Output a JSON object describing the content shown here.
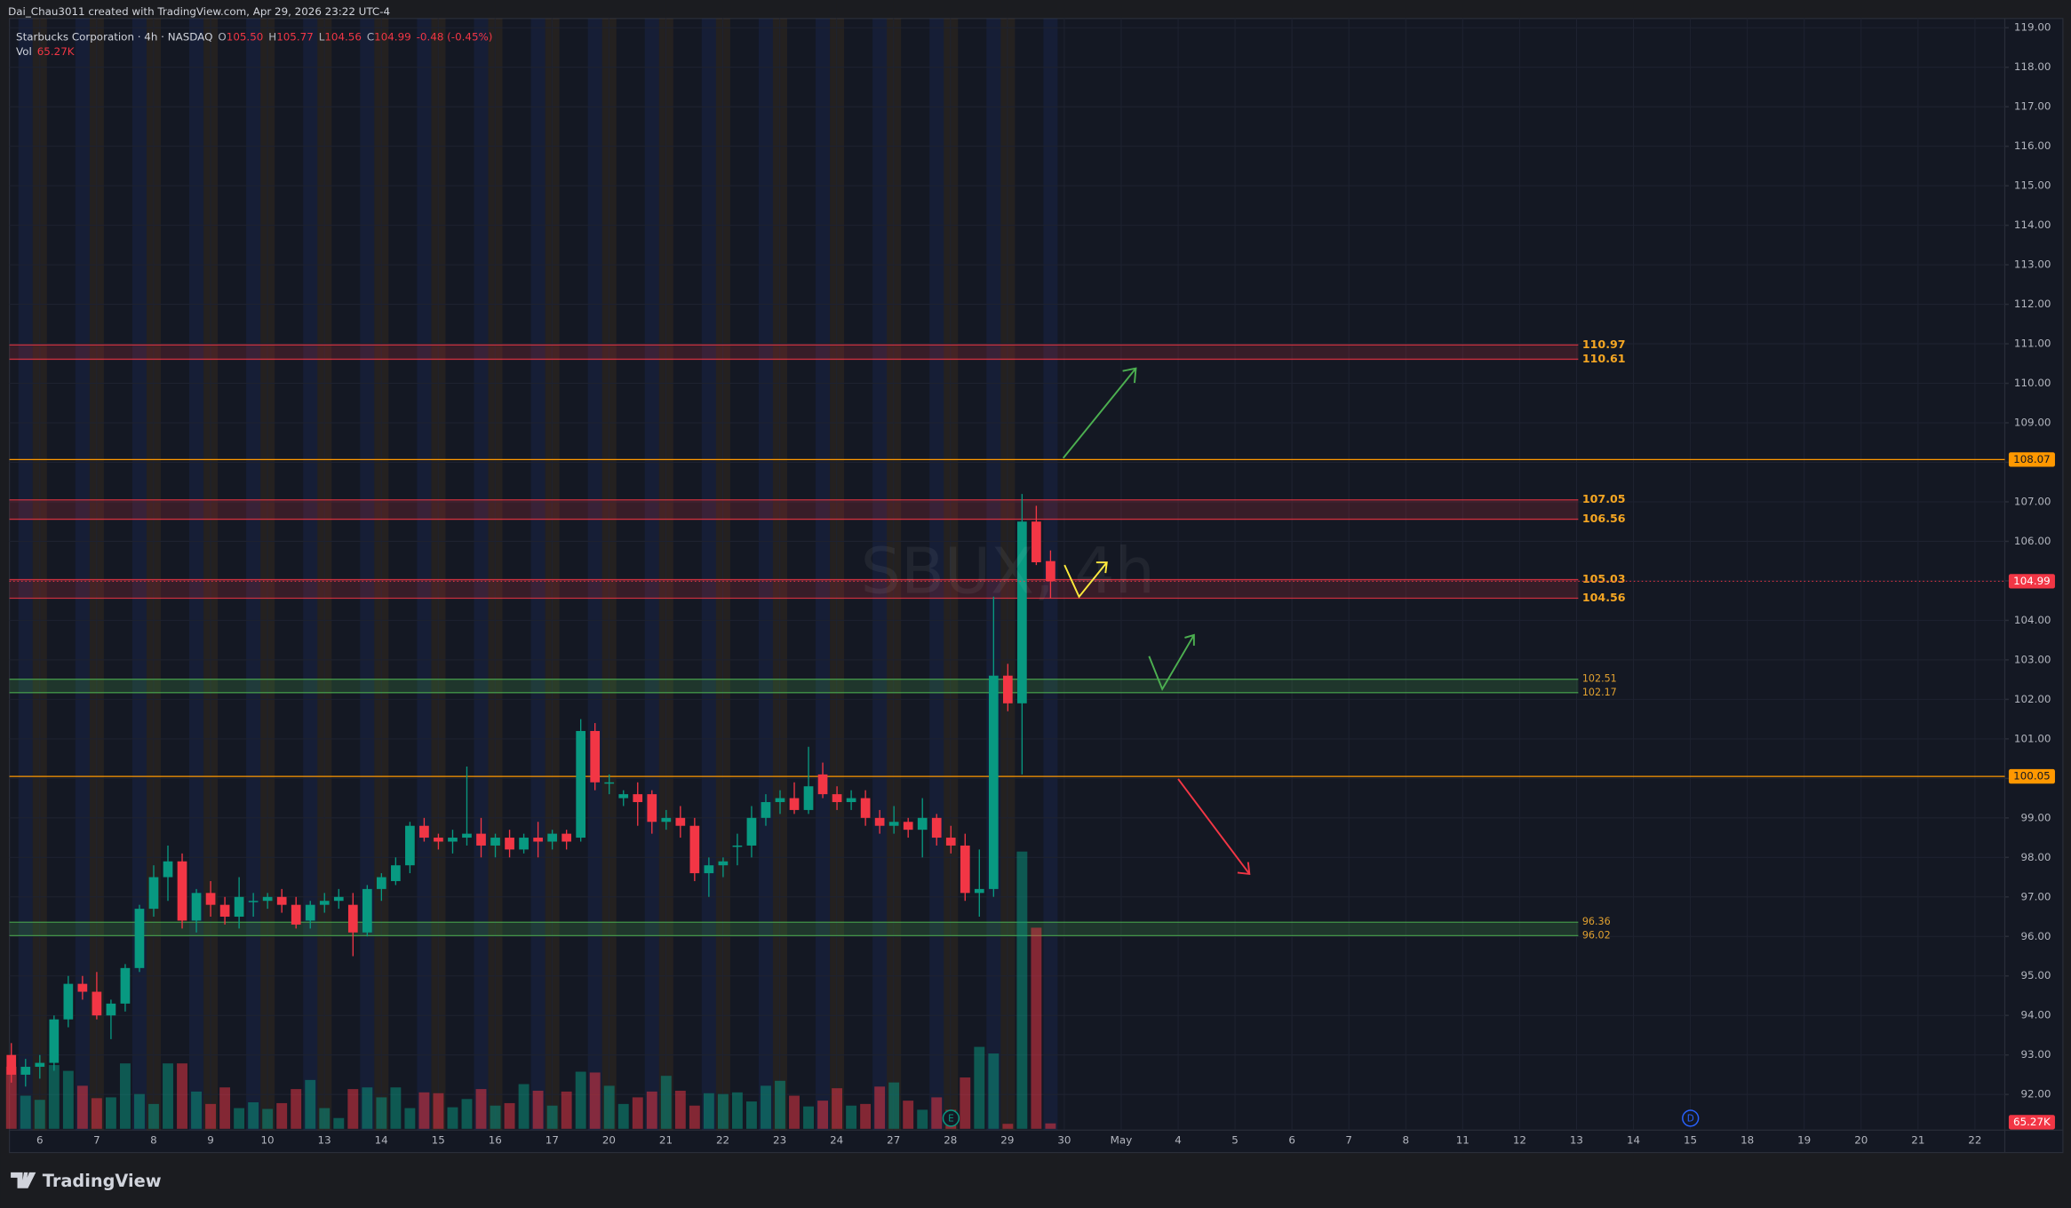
{
  "chart_data": {
    "type": "candlestick",
    "author_line": "Dai_Chau3011 created with TradingView.com, Apr 29, 2026 23:22 UTC-4",
    "legend": {
      "symbol": "Starbucks Corporation · 4h · NASDAQ",
      "o_key": "O",
      "open": {
        "value": 105.5,
        "label": "105.50"
      },
      "h_key": "H",
      "high": 105.77,
      "l_key": "L",
      "low": 104.56,
      "c_key": "C",
      "close": 104.99,
      "change": "-0.48 (-0.45%)",
      "vol_key": "Vol",
      "vol": {
        "value": 65270,
        "label": "65.27K"
      }
    },
    "watermark": "SBUX, 4h",
    "brand": "TradingView",
    "up_color": "#089981",
    "down_color": "#f23645",
    "open": [
      93.0,
      92.5,
      92.7,
      92.8,
      93.9,
      94.8,
      94.6,
      94.0,
      94.3,
      95.2,
      96.7,
      97.5,
      97.9,
      96.4,
      97.1,
      96.8,
      96.5,
      96.9,
      96.9,
      97.0,
      96.8,
      96.4,
      96.8,
      96.9,
      96.8,
      96.1,
      97.2,
      97.4,
      97.8,
      98.8,
      98.5,
      98.4,
      98.5,
      98.6,
      98.3,
      98.5,
      98.2,
      98.5,
      98.4,
      98.6,
      98.5,
      101.2,
      99.9,
      99.5,
      99.6,
      99.6,
      98.9,
      99.0,
      98.8,
      97.6,
      97.8,
      98.3,
      98.3,
      99.0,
      99.4,
      99.5,
      99.2,
      100.1,
      99.6,
      99.4,
      99.5,
      99.0,
      98.8,
      98.9,
      98.7,
      99.0,
      98.5,
      98.3,
      97.1,
      97.2,
      102.6,
      101.9,
      106.5,
      105.5
    ],
    "high": [
      93.3,
      92.9,
      93.0,
      94.0,
      95.0,
      95.0,
      95.1,
      94.4,
      95.3,
      96.8,
      97.8,
      98.3,
      98.1,
      97.2,
      97.4,
      97.0,
      97.5,
      97.1,
      97.1,
      97.2,
      97.0,
      96.9,
      97.1,
      97.2,
      97.1,
      97.3,
      97.6,
      98.0,
      98.9,
      99.0,
      98.6,
      98.7,
      100.3,
      99.0,
      98.6,
      98.7,
      98.6,
      98.9,
      98.7,
      98.7,
      101.5,
      101.4,
      100.1,
      99.7,
      99.9,
      99.7,
      99.2,
      99.3,
      99.0,
      98.0,
      98.0,
      98.6,
      99.3,
      99.6,
      99.7,
      99.9,
      100.8,
      100.4,
      99.8,
      99.7,
      99.7,
      99.2,
      99.3,
      99.0,
      99.5,
      99.1,
      98.8,
      98.6,
      98.2,
      104.6,
      102.9,
      107.2,
      106.9,
      105.77
    ],
    "low": [
      92.3,
      92.2,
      92.4,
      92.6,
      93.7,
      94.4,
      93.9,
      93.4,
      94.1,
      95.1,
      96.5,
      96.9,
      96.2,
      96.1,
      96.5,
      96.3,
      96.2,
      96.5,
      96.7,
      96.6,
      96.2,
      96.2,
      96.6,
      96.7,
      95.5,
      96.0,
      96.9,
      97.3,
      97.6,
      98.4,
      98.2,
      98.1,
      98.3,
      98.0,
      98.0,
      98.0,
      98.1,
      98.0,
      98.2,
      98.2,
      98.4,
      99.7,
      99.6,
      99.3,
      98.8,
      98.6,
      98.7,
      98.5,
      97.4,
      97.0,
      97.5,
      97.8,
      98.0,
      98.8,
      99.1,
      99.1,
      99.1,
      99.5,
      99.2,
      99.2,
      98.8,
      98.6,
      98.6,
      98.5,
      98.0,
      98.3,
      98.1,
      96.9,
      96.5,
      97.0,
      101.7,
      100.1,
      105.4,
      104.56
    ],
    "close": [
      92.5,
      92.7,
      92.8,
      93.9,
      94.8,
      94.6,
      94.0,
      94.3,
      95.2,
      96.7,
      97.5,
      97.9,
      96.4,
      97.1,
      96.8,
      96.5,
      97.0,
      96.9,
      97.0,
      96.8,
      96.3,
      96.8,
      96.9,
      97.0,
      96.1,
      97.2,
      97.5,
      97.8,
      98.8,
      98.5,
      98.4,
      98.5,
      98.6,
      98.3,
      98.5,
      98.2,
      98.5,
      98.4,
      98.6,
      98.4,
      101.2,
      99.9,
      99.9,
      99.6,
      99.4,
      98.9,
      99.0,
      98.8,
      97.6,
      97.8,
      97.9,
      98.3,
      99.0,
      99.4,
      99.5,
      99.2,
      99.8,
      99.6,
      99.4,
      99.5,
      99.0,
      98.8,
      98.9,
      98.7,
      99.0,
      98.5,
      98.3,
      97.1,
      97.2,
      102.6,
      101.9,
      106.5,
      105.47,
      104.99
    ],
    "volume": [
      750000,
      400000,
      350000,
      770000,
      700000,
      520000,
      370000,
      380000,
      790000,
      420000,
      300000,
      790000,
      790000,
      450000,
      300000,
      500000,
      250000,
      320000,
      240000,
      310000,
      480000,
      590000,
      250000,
      130000,
      480000,
      500000,
      380000,
      500000,
      250000,
      440000,
      430000,
      260000,
      360000,
      480000,
      280000,
      310000,
      540000,
      460000,
      280000,
      450000,
      690000,
      680000,
      520000,
      300000,
      380000,
      450000,
      640000,
      460000,
      280000,
      430000,
      420000,
      440000,
      330000,
      520000,
      580000,
      400000,
      270000,
      340000,
      490000,
      280000,
      300000,
      510000,
      560000,
      340000,
      230000,
      380000,
      230000,
      620000,
      990000,
      910000,
      60000,
      3350000,
      2430000,
      65270
    ],
    "ylim": [
      92,
      119
    ],
    "yticks": [
      {
        "value": 92,
        "label": "92.00"
      },
      {
        "value": 93,
        "label": "93.00"
      },
      {
        "value": 94,
        "label": "94.00"
      },
      {
        "value": 95,
        "label": "95.00"
      },
      {
        "value": 96,
        "label": "96.00"
      },
      {
        "value": 97,
        "label": "97.00"
      },
      {
        "value": 98,
        "label": "98.00"
      },
      {
        "value": 99,
        "label": "99.00"
      },
      {
        "value": 100,
        "label": "100.00"
      },
      {
        "value": 101,
        "label": "101.00"
      },
      {
        "value": 102,
        "label": "102.00"
      },
      {
        "value": 103,
        "label": "103.00"
      },
      {
        "value": 104,
        "label": "104.00"
      },
      {
        "value": 105,
        "label": "105.00"
      },
      {
        "value": 106,
        "label": "106.00"
      },
      {
        "value": 107,
        "label": "107.00"
      },
      {
        "value": 108,
        "label": "108.00"
      },
      {
        "value": 109,
        "label": "109.00"
      },
      {
        "value": 110,
        "label": "110.00"
      },
      {
        "value": 111,
        "label": "111.00"
      },
      {
        "value": 112,
        "label": "112.00"
      },
      {
        "value": 113,
        "label": "113.00"
      },
      {
        "value": 114,
        "label": "114.00"
      },
      {
        "value": 115,
        "label": "115.00"
      },
      {
        "value": 116,
        "label": "116.00"
      },
      {
        "value": 117,
        "label": "117.00"
      },
      {
        "value": 118,
        "label": "118.00"
      },
      {
        "value": 119,
        "label": "119.00"
      }
    ],
    "xlabels": [
      "6",
      "7",
      "8",
      "9",
      "10",
      "13",
      "14",
      "15",
      "16",
      "17",
      "20",
      "21",
      "22",
      "23",
      "24",
      "27",
      "28",
      "29",
      "30",
      "May",
      "4",
      "5",
      "6",
      "7",
      "8",
      "11",
      "12",
      "13",
      "14",
      "15",
      "18",
      "19",
      "20",
      "21",
      "22"
    ],
    "zones": [
      {
        "high": 110.97,
        "low": 110.61,
        "color": "#f23645"
      },
      {
        "high": 107.05,
        "low": 106.56,
        "color": "#f23645"
      },
      {
        "high": 105.03,
        "low": 104.56,
        "color": "#f23645"
      },
      {
        "high": 102.51,
        "low": 102.17,
        "color": "#4caf50"
      },
      {
        "high": 96.36,
        "low": 96.02,
        "color": "#4caf50"
      }
    ],
    "lines": [
      {
        "value": 108.07,
        "color": "#ff9800"
      },
      {
        "value": 100.05,
        "color": "#ff9800"
      }
    ],
    "events": [
      "E",
      "D"
    ],
    "grid": true
  }
}
